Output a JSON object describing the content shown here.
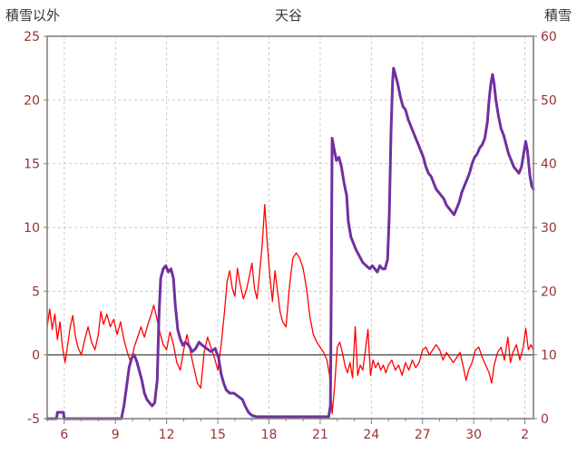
{
  "chart_data": {
    "type": "line",
    "title": "天谷",
    "x_range": [
      5,
      33.5
    ],
    "x_ticks": [
      {
        "value": 6,
        "label": "6"
      },
      {
        "value": 9,
        "label": "9"
      },
      {
        "value": 12,
        "label": "12"
      },
      {
        "value": 15,
        "label": "15"
      },
      {
        "value": 18,
        "label": "18"
      },
      {
        "value": 21,
        "label": "21"
      },
      {
        "value": 24,
        "label": "24"
      },
      {
        "value": 27,
        "label": "27"
      },
      {
        "value": 30,
        "label": "30"
      },
      {
        "value": 33,
        "label": "2"
      }
    ],
    "left_axis": {
      "title": "積雪以外",
      "min": -5,
      "max": 25,
      "tick_values": [
        -5,
        0,
        5,
        10,
        15,
        20,
        25
      ],
      "tick_labels": [
        "-5",
        "0",
        "5",
        "10",
        "15",
        "20",
        "25"
      ],
      "grid_values": [
        5,
        10,
        15,
        20
      ]
    },
    "right_axis": {
      "title": "積雪",
      "min": 0,
      "max": 60,
      "tick_values": [
        0,
        10,
        20,
        30,
        40,
        50,
        60
      ],
      "tick_labels": [
        "0",
        "10",
        "20",
        "30",
        "40",
        "50",
        "60"
      ]
    },
    "zero_line_left_value": 0,
    "colors": {
      "grid": "#c9c9c9",
      "border": "#808080",
      "zero_line": "#595959",
      "axis_labels": "#993333",
      "title_text": "#333333",
      "red_series": "#ff0000",
      "purple_series": "#7030a0"
    },
    "grid": {
      "dash": "3,3",
      "on": true
    },
    "legend": "none",
    "series": [
      {
        "name": "red_line",
        "axis": "left",
        "color": "#ff0000",
        "width": 1.3,
        "points": [
          [
            5.0,
            2.2
          ],
          [
            5.15,
            3.6
          ],
          [
            5.3,
            2.0
          ],
          [
            5.45,
            3.2
          ],
          [
            5.6,
            1.2
          ],
          [
            5.75,
            2.6
          ],
          [
            5.9,
            0.6
          ],
          [
            6.05,
            -0.6
          ],
          [
            6.2,
            0.8
          ],
          [
            6.35,
            2.2
          ],
          [
            6.5,
            3.1
          ],
          [
            6.65,
            1.5
          ],
          [
            6.8,
            0.6
          ],
          [
            7.0,
            0.0
          ],
          [
            7.2,
            1.2
          ],
          [
            7.4,
            2.2
          ],
          [
            7.6,
            1.0
          ],
          [
            7.8,
            0.4
          ],
          [
            8.0,
            1.6
          ],
          [
            8.15,
            3.4
          ],
          [
            8.3,
            2.4
          ],
          [
            8.5,
            3.2
          ],
          [
            8.7,
            2.2
          ],
          [
            8.9,
            2.8
          ],
          [
            9.1,
            1.6
          ],
          [
            9.3,
            2.6
          ],
          [
            9.5,
            1.2
          ],
          [
            9.7,
            0.2
          ],
          [
            9.9,
            -0.6
          ],
          [
            10.1,
            0.6
          ],
          [
            10.3,
            1.4
          ],
          [
            10.5,
            2.2
          ],
          [
            10.7,
            1.4
          ],
          [
            10.9,
            2.4
          ],
          [
            11.1,
            3.2
          ],
          [
            11.25,
            3.9
          ],
          [
            11.4,
            3.0
          ],
          [
            11.6,
            1.8
          ],
          [
            11.8,
            0.8
          ],
          [
            12.0,
            0.4
          ],
          [
            12.2,
            1.8
          ],
          [
            12.4,
            0.8
          ],
          [
            12.6,
            -0.6
          ],
          [
            12.8,
            -1.2
          ],
          [
            13.0,
            0.4
          ],
          [
            13.2,
            1.6
          ],
          [
            13.4,
            0.2
          ],
          [
            13.6,
            -1.0
          ],
          [
            13.8,
            -2.2
          ],
          [
            14.0,
            -2.6
          ],
          [
            14.2,
            0.2
          ],
          [
            14.4,
            1.4
          ],
          [
            14.6,
            0.6
          ],
          [
            14.8,
            -0.2
          ],
          [
            15.0,
            -1.2
          ],
          [
            15.2,
            0.8
          ],
          [
            15.4,
            3.5
          ],
          [
            15.55,
            5.8
          ],
          [
            15.7,
            6.6
          ],
          [
            15.85,
            5.2
          ],
          [
            16.0,
            4.6
          ],
          [
            16.15,
            6.8
          ],
          [
            16.3,
            5.6
          ],
          [
            16.5,
            4.4
          ],
          [
            16.7,
            5.2
          ],
          [
            16.85,
            6.2
          ],
          [
            17.0,
            7.2
          ],
          [
            17.15,
            5.2
          ],
          [
            17.3,
            4.4
          ],
          [
            17.45,
            6.4
          ],
          [
            17.6,
            8.6
          ],
          [
            17.75,
            11.8
          ],
          [
            17.9,
            8.8
          ],
          [
            18.05,
            6.2
          ],
          [
            18.2,
            4.2
          ],
          [
            18.35,
            6.6
          ],
          [
            18.5,
            5.0
          ],
          [
            18.65,
            3.4
          ],
          [
            18.8,
            2.6
          ],
          [
            19.0,
            2.2
          ],
          [
            19.2,
            5.4
          ],
          [
            19.4,
            7.6
          ],
          [
            19.6,
            8.0
          ],
          [
            19.8,
            7.6
          ],
          [
            20.0,
            6.8
          ],
          [
            20.2,
            5.2
          ],
          [
            20.4,
            3.0
          ],
          [
            20.6,
            1.6
          ],
          [
            20.8,
            1.0
          ],
          [
            21.0,
            0.6
          ],
          [
            21.2,
            0.2
          ],
          [
            21.4,
            -0.4
          ],
          [
            21.55,
            -1.6
          ],
          [
            21.7,
            -4.6
          ],
          [
            21.85,
            -2.4
          ],
          [
            22.0,
            0.6
          ],
          [
            22.15,
            1.0
          ],
          [
            22.3,
            0.2
          ],
          [
            22.45,
            -0.8
          ],
          [
            22.6,
            -1.4
          ],
          [
            22.75,
            -0.6
          ],
          [
            22.9,
            -1.8
          ],
          [
            23.05,
            2.2
          ],
          [
            23.2,
            -1.6
          ],
          [
            23.35,
            -0.8
          ],
          [
            23.5,
            -1.2
          ],
          [
            23.65,
            0.4
          ],
          [
            23.8,
            2.0
          ],
          [
            23.95,
            -1.6
          ],
          [
            24.1,
            -0.4
          ],
          [
            24.25,
            -1.0
          ],
          [
            24.4,
            -0.6
          ],
          [
            24.55,
            -1.2
          ],
          [
            24.7,
            -0.8
          ],
          [
            24.85,
            -1.4
          ],
          [
            25.0,
            -0.8
          ],
          [
            25.2,
            -0.4
          ],
          [
            25.4,
            -1.2
          ],
          [
            25.6,
            -0.8
          ],
          [
            25.8,
            -1.6
          ],
          [
            26.0,
            -0.6
          ],
          [
            26.2,
            -1.2
          ],
          [
            26.4,
            -0.4
          ],
          [
            26.6,
            -1.0
          ],
          [
            26.8,
            -0.6
          ],
          [
            27.0,
            0.4
          ],
          [
            27.2,
            0.6
          ],
          [
            27.4,
            0.0
          ],
          [
            27.6,
            0.4
          ],
          [
            27.8,
            0.8
          ],
          [
            28.0,
            0.4
          ],
          [
            28.2,
            -0.4
          ],
          [
            28.4,
            0.2
          ],
          [
            28.6,
            -0.2
          ],
          [
            28.8,
            -0.6
          ],
          [
            29.0,
            -0.2
          ],
          [
            29.2,
            0.2
          ],
          [
            29.4,
            -1.0
          ],
          [
            29.55,
            -2.0
          ],
          [
            29.7,
            -1.2
          ],
          [
            29.9,
            -0.6
          ],
          [
            30.1,
            0.4
          ],
          [
            30.3,
            0.6
          ],
          [
            30.5,
            -0.2
          ],
          [
            30.7,
            -0.8
          ],
          [
            30.9,
            -1.4
          ],
          [
            31.05,
            -2.2
          ],
          [
            31.2,
            -0.8
          ],
          [
            31.4,
            0.2
          ],
          [
            31.6,
            0.6
          ],
          [
            31.8,
            -0.4
          ],
          [
            32.0,
            1.4
          ],
          [
            32.15,
            -0.6
          ],
          [
            32.3,
            0.2
          ],
          [
            32.5,
            0.8
          ],
          [
            32.7,
            -0.4
          ],
          [
            32.9,
            0.6
          ],
          [
            33.05,
            2.1
          ],
          [
            33.2,
            0.4
          ],
          [
            33.35,
            0.8
          ],
          [
            33.5,
            0.4
          ]
        ]
      },
      {
        "name": "purple_line",
        "axis": "right",
        "color": "#7030a0",
        "width": 3,
        "points": [
          [
            5.0,
            0
          ],
          [
            5.55,
            0
          ],
          [
            5.6,
            1
          ],
          [
            5.95,
            1
          ],
          [
            6.0,
            0
          ],
          [
            9.35,
            0
          ],
          [
            9.5,
            2
          ],
          [
            9.65,
            5
          ],
          [
            9.8,
            8
          ],
          [
            9.95,
            9.5
          ],
          [
            10.1,
            10
          ],
          [
            10.25,
            9
          ],
          [
            10.4,
            7.5
          ],
          [
            10.55,
            6
          ],
          [
            10.7,
            4
          ],
          [
            10.85,
            3
          ],
          [
            11.0,
            2.5
          ],
          [
            11.15,
            2
          ],
          [
            11.3,
            2.5
          ],
          [
            11.45,
            6
          ],
          [
            11.55,
            16
          ],
          [
            11.65,
            22
          ],
          [
            11.8,
            23.5
          ],
          [
            11.95,
            24
          ],
          [
            12.1,
            23
          ],
          [
            12.25,
            23.5
          ],
          [
            12.4,
            22
          ],
          [
            12.5,
            18
          ],
          [
            12.65,
            14
          ],
          [
            12.8,
            12.5
          ],
          [
            12.95,
            11.5
          ],
          [
            13.1,
            12
          ],
          [
            13.3,
            11.5
          ],
          [
            13.5,
            10.5
          ],
          [
            13.7,
            11
          ],
          [
            13.9,
            12
          ],
          [
            14.1,
            11.5
          ],
          [
            14.35,
            11
          ],
          [
            14.6,
            10.5
          ],
          [
            14.85,
            11
          ],
          [
            15.05,
            9.5
          ],
          [
            15.2,
            7
          ],
          [
            15.35,
            5.5
          ],
          [
            15.5,
            4.5
          ],
          [
            15.7,
            4
          ],
          [
            15.95,
            4
          ],
          [
            16.2,
            3.5
          ],
          [
            16.45,
            3
          ],
          [
            16.6,
            2
          ],
          [
            16.8,
            1
          ],
          [
            17.0,
            0.5
          ],
          [
            17.3,
            0.3
          ],
          [
            21.5,
            0.3
          ],
          [
            21.6,
            2
          ],
          [
            21.65,
            20
          ],
          [
            21.7,
            44
          ],
          [
            21.8,
            42.5
          ],
          [
            21.95,
            40.5
          ],
          [
            22.1,
            41
          ],
          [
            22.25,
            39.5
          ],
          [
            22.4,
            37
          ],
          [
            22.55,
            35
          ],
          [
            22.65,
            31
          ],
          [
            22.8,
            28.5
          ],
          [
            22.95,
            27.5
          ],
          [
            23.1,
            26.5
          ],
          [
            23.3,
            25.5
          ],
          [
            23.5,
            24.5
          ],
          [
            23.7,
            24
          ],
          [
            23.9,
            23.5
          ],
          [
            24.05,
            24
          ],
          [
            24.2,
            23.5
          ],
          [
            24.35,
            23
          ],
          [
            24.5,
            24
          ],
          [
            24.65,
            23.5
          ],
          [
            24.8,
            23.5
          ],
          [
            24.95,
            25
          ],
          [
            25.05,
            32
          ],
          [
            25.15,
            45
          ],
          [
            25.25,
            53
          ],
          [
            25.3,
            55
          ],
          [
            25.4,
            54
          ],
          [
            25.55,
            52.5
          ],
          [
            25.7,
            50.5
          ],
          [
            25.85,
            49
          ],
          [
            26.0,
            48.5
          ],
          [
            26.15,
            47
          ],
          [
            26.3,
            46
          ],
          [
            26.45,
            45
          ],
          [
            26.6,
            44
          ],
          [
            26.75,
            43
          ],
          [
            26.9,
            42
          ],
          [
            27.05,
            41
          ],
          [
            27.2,
            39.5
          ],
          [
            27.35,
            38.5
          ],
          [
            27.5,
            38
          ],
          [
            27.65,
            37
          ],
          [
            27.8,
            36
          ],
          [
            27.95,
            35.5
          ],
          [
            28.1,
            35
          ],
          [
            28.25,
            34.5
          ],
          [
            28.4,
            33.5
          ],
          [
            28.55,
            33
          ],
          [
            28.7,
            32.5
          ],
          [
            28.85,
            32
          ],
          [
            29.0,
            33
          ],
          [
            29.15,
            34
          ],
          [
            29.3,
            35.5
          ],
          [
            29.45,
            36.5
          ],
          [
            29.6,
            37.5
          ],
          [
            29.75,
            38.5
          ],
          [
            29.9,
            40
          ],
          [
            30.05,
            41
          ],
          [
            30.2,
            41.5
          ],
          [
            30.35,
            42.5
          ],
          [
            30.5,
            43
          ],
          [
            30.65,
            44
          ],
          [
            30.8,
            46.5
          ],
          [
            30.9,
            50
          ],
          [
            31.0,
            52.5
          ],
          [
            31.1,
            54
          ],
          [
            31.2,
            52.5
          ],
          [
            31.3,
            50
          ],
          [
            31.45,
            47.5
          ],
          [
            31.6,
            45.5
          ],
          [
            31.75,
            44.5
          ],
          [
            31.9,
            43
          ],
          [
            32.05,
            41.5
          ],
          [
            32.2,
            40.5
          ],
          [
            32.35,
            39.5
          ],
          [
            32.5,
            39
          ],
          [
            32.65,
            38.5
          ],
          [
            32.8,
            39.5
          ],
          [
            32.95,
            42
          ],
          [
            33.05,
            43.5
          ],
          [
            33.15,
            42
          ],
          [
            33.3,
            38
          ],
          [
            33.4,
            36.5
          ],
          [
            33.5,
            36
          ]
        ]
      }
    ]
  }
}
